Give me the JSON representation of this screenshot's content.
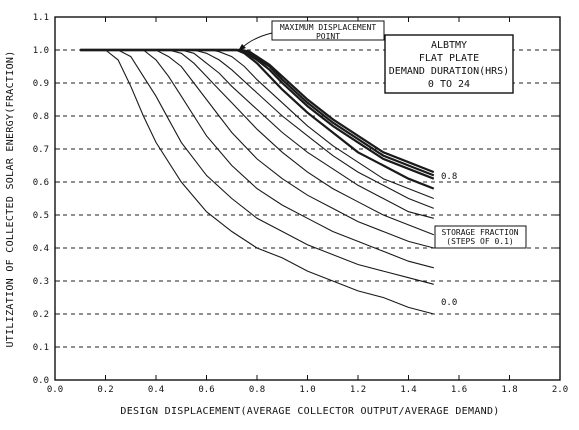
{
  "chart_data": {
    "type": "line",
    "xlabel": "DESIGN DISPLACEMENT(AVERAGE COLLECTOR OUTPUT/AVERAGE DEMAND)",
    "ylabel": "UTILIZATION OF COLLECTED SOLAR ENERGY(FRACTION)",
    "xlim": [
      0.0,
      2.0
    ],
    "ylim": [
      0.0,
      1.1
    ],
    "x_ticks": [
      "0.0",
      "0.2",
      "0.4",
      "0.6",
      "0.8",
      "1.0",
      "1.2",
      "1.4",
      "1.6",
      "1.8",
      "2.0"
    ],
    "y_ticks": [
      "0.0",
      "0.1",
      "0.2",
      "0.3",
      "0.4",
      "0.5",
      "0.6",
      "0.7",
      "0.8",
      "0.9",
      "1.0",
      "1.1"
    ],
    "grid": "dashed horizontal lines at each y tick",
    "legend": "none",
    "info_box": [
      "ALBTMY",
      "FLAT PLATE",
      "DEMAND DURATION(HRS)",
      "0 TO 24"
    ],
    "annotations": {
      "max_point_line1": "MAXIMUM DISPLACEMENT",
      "max_point_line2": "POINT",
      "storage_line1": "STORAGE FRACTION",
      "storage_line2": "(STEPS OF 0.1)",
      "label_top": "0.8",
      "label_bottom": "0.0"
    },
    "series": [
      {
        "x": [
          0.1,
          0.2,
          0.25,
          0.3,
          0.35,
          0.4,
          0.5,
          0.6,
          0.7,
          0.8,
          0.9,
          1.0,
          1.1,
          1.2,
          1.3,
          1.4,
          1.5
        ],
        "y": [
          1.0,
          1.0,
          0.97,
          0.89,
          0.8,
          0.72,
          0.6,
          0.51,
          0.45,
          0.4,
          0.37,
          0.33,
          0.3,
          0.27,
          0.25,
          0.22,
          0.2
        ]
      },
      {
        "x": [
          0.1,
          0.25,
          0.3,
          0.35,
          0.4,
          0.45,
          0.5,
          0.6,
          0.7,
          0.8,
          0.9,
          1.0,
          1.1,
          1.2,
          1.3,
          1.4,
          1.5
        ],
        "y": [
          1.0,
          1.0,
          0.98,
          0.92,
          0.86,
          0.79,
          0.72,
          0.62,
          0.55,
          0.49,
          0.45,
          0.41,
          0.38,
          0.35,
          0.33,
          0.31,
          0.29
        ]
      },
      {
        "x": [
          0.1,
          0.35,
          0.4,
          0.45,
          0.5,
          0.55,
          0.6,
          0.7,
          0.8,
          0.9,
          1.0,
          1.1,
          1.2,
          1.3,
          1.4,
          1.5
        ],
        "y": [
          1.0,
          1.0,
          0.97,
          0.92,
          0.86,
          0.8,
          0.74,
          0.65,
          0.58,
          0.53,
          0.49,
          0.45,
          0.42,
          0.39,
          0.36,
          0.34
        ]
      },
      {
        "x": [
          0.1,
          0.4,
          0.45,
          0.5,
          0.55,
          0.6,
          0.65,
          0.7,
          0.8,
          0.9,
          1.0,
          1.1,
          1.2,
          1.3,
          1.4,
          1.5
        ],
        "y": [
          1.0,
          1.0,
          0.98,
          0.95,
          0.9,
          0.85,
          0.8,
          0.75,
          0.67,
          0.61,
          0.56,
          0.52,
          0.48,
          0.45,
          0.42,
          0.4
        ]
      },
      {
        "x": [
          0.1,
          0.45,
          0.5,
          0.55,
          0.6,
          0.65,
          0.7,
          0.8,
          0.9,
          1.0,
          1.1,
          1.2,
          1.3,
          1.4,
          1.5
        ],
        "y": [
          1.0,
          1.0,
          0.99,
          0.96,
          0.92,
          0.88,
          0.84,
          0.76,
          0.69,
          0.63,
          0.58,
          0.54,
          0.5,
          0.47,
          0.44
        ]
      },
      {
        "x": [
          0.1,
          0.5,
          0.55,
          0.6,
          0.65,
          0.7,
          0.8,
          0.9,
          1.0,
          1.1,
          1.2,
          1.3,
          1.4,
          1.5
        ],
        "y": [
          1.0,
          1.0,
          0.99,
          0.96,
          0.93,
          0.89,
          0.82,
          0.75,
          0.69,
          0.64,
          0.59,
          0.55,
          0.51,
          0.49
        ]
      },
      {
        "x": [
          0.1,
          0.55,
          0.6,
          0.65,
          0.7,
          0.8,
          0.9,
          1.0,
          1.1,
          1.2,
          1.3,
          1.4,
          1.5
        ],
        "y": [
          1.0,
          1.0,
          0.99,
          0.97,
          0.94,
          0.87,
          0.8,
          0.74,
          0.68,
          0.63,
          0.59,
          0.55,
          0.52
        ]
      },
      {
        "x": [
          0.1,
          0.62,
          0.65,
          0.7,
          0.75,
          0.8,
          0.9,
          1.0,
          1.1,
          1.2,
          1.3,
          1.4,
          1.5
        ],
        "y": [
          1.0,
          1.0,
          0.995,
          0.98,
          0.95,
          0.91,
          0.84,
          0.77,
          0.71,
          0.66,
          0.61,
          0.58,
          0.55
        ]
      },
      {
        "x": [
          0.1,
          0.7,
          0.72,
          0.75,
          0.8,
          0.85,
          0.9,
          1.0,
          1.1,
          1.2,
          1.3,
          1.4,
          1.5
        ],
        "y": [
          1.0,
          1.0,
          1.0,
          0.99,
          0.96,
          0.92,
          0.88,
          0.81,
          0.75,
          0.69,
          0.65,
          0.61,
          0.58
        ]
      },
      {
        "x": [
          0.1,
          0.72,
          0.75,
          0.8,
          0.85,
          0.9,
          1.0,
          1.1,
          1.2,
          1.3,
          1.4,
          1.5
        ],
        "y": [
          1.0,
          1.0,
          0.995,
          0.97,
          0.94,
          0.9,
          0.83,
          0.77,
          0.72,
          0.67,
          0.64,
          0.61
        ]
      },
      {
        "x": [
          0.1,
          0.73,
          0.76,
          0.8,
          0.85,
          0.9,
          1.0,
          1.1,
          1.2,
          1.3,
          1.4,
          1.5
        ],
        "y": [
          1.0,
          1.0,
          0.995,
          0.975,
          0.95,
          0.91,
          0.84,
          0.78,
          0.73,
          0.68,
          0.65,
          0.62
        ]
      },
      {
        "x": [
          0.1,
          0.74,
          0.77,
          0.8,
          0.85,
          0.9,
          1.0,
          1.1,
          1.2,
          1.3,
          1.4,
          1.5
        ],
        "y": [
          1.0,
          1.0,
          0.995,
          0.98,
          0.955,
          0.92,
          0.85,
          0.79,
          0.74,
          0.69,
          0.66,
          0.63
        ]
      }
    ]
  }
}
